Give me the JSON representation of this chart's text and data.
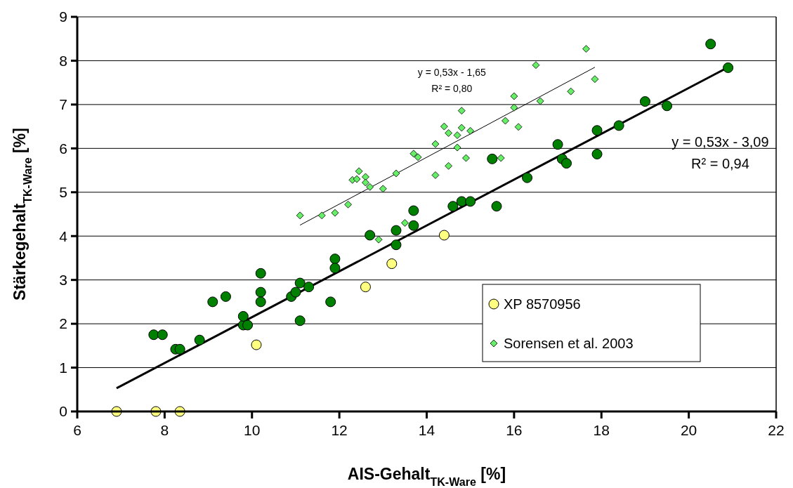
{
  "chart_data": {
    "type": "scatter",
    "xlabel": "AIS-Gehalt$_{TK-Ware}$ [%]",
    "ylabel": "Stärkegehalt$_{TK-Ware}$ [%]",
    "xlim": [
      6,
      22
    ],
    "xticks": [
      6,
      8,
      10,
      12,
      14,
      16,
      18,
      20,
      22
    ],
    "ylim": [
      0,
      9
    ],
    "yticks": [
      0,
      1,
      2,
      3,
      4,
      5,
      6,
      7,
      8,
      9
    ],
    "grid": "y",
    "legend": "bottom right",
    "series": [
      {
        "type": "line",
        "color": "#000000",
        "marker": "none",
        "line_style": "solid",
        "x": [
          6.9,
          20.9
        ],
        "values": [
          0.53,
          7.85
        ]
      },
      {
        "type": "line",
        "color": "#000000",
        "marker": "none",
        "line_style": "solid",
        "x": [
          11.1,
          17.85
        ],
        "values": [
          4.25,
          7.85
        ]
      },
      {
        "color": "#008000",
        "marker": "circle",
        "x": [
          7.75,
          7.95,
          8.25,
          8.35,
          8.8,
          9.1,
          9.4,
          9.8,
          9.8,
          9.9,
          10.2,
          10.2,
          10.2,
          10.9,
          11.0,
          11.1,
          11.1,
          11.3,
          11.8,
          11.9,
          11.9,
          12.7,
          13.3,
          13.3,
          13.7,
          13.7,
          14.6,
          14.8,
          15.0,
          15.6,
          15.5,
          16.3,
          17.0,
          17.1,
          17.2,
          17.9,
          17.9,
          18.4,
          19.0,
          19.5,
          20.5,
          20.9
        ],
        "values": [
          1.75,
          1.75,
          1.42,
          1.42,
          1.63,
          2.5,
          2.62,
          1.97,
          2.17,
          1.97,
          3.15,
          2.72,
          2.5,
          2.62,
          2.72,
          2.93,
          2.07,
          2.84,
          2.5,
          3.48,
          3.27,
          4.02,
          4.13,
          3.8,
          4.58,
          4.24,
          4.68,
          4.79,
          4.79,
          4.68,
          5.76,
          5.33,
          6.09,
          5.76,
          5.66,
          6.41,
          5.87,
          6.52,
          7.07,
          6.97,
          8.38,
          7.84
        ]
      },
      {
        "name": "XP 8570956",
        "color": "#ffff80",
        "marker": "circle",
        "x": [
          6.9,
          7.8,
          8.35,
          10.1,
          12.6,
          13.2,
          14.4
        ],
        "values": [
          0,
          0,
          0,
          1.52,
          2.84,
          3.37,
          4.02
        ]
      },
      {
        "name": "Sorensen et al. 2003",
        "color": "#66ee66",
        "marker": "diamond",
        "x": [
          11.1,
          11.6,
          11.9,
          12.2,
          12.3,
          12.4,
          12.45,
          12.6,
          12.6,
          12.7,
          12.9,
          13.0,
          13.3,
          13.5,
          13.7,
          13.8,
          14.2,
          14.2,
          14.4,
          14.5,
          14.5,
          14.7,
          14.7,
          14.8,
          14.8,
          14.9,
          15.0,
          15.7,
          15.8,
          16.0,
          16.0,
          16.1,
          16.5,
          16.6,
          17.3,
          17.65,
          17.85
        ],
        "values": [
          4.47,
          4.47,
          4.53,
          4.72,
          5.28,
          5.3,
          5.48,
          5.35,
          5.22,
          5.12,
          3.92,
          5.08,
          5.43,
          4.3,
          5.88,
          5.8,
          6.1,
          5.39,
          6.5,
          6.35,
          5.6,
          6.02,
          6.3,
          6.86,
          6.47,
          5.78,
          6.4,
          5.78,
          6.63,
          6.93,
          7.19,
          6.49,
          7.9,
          7.08,
          7.3,
          8.27,
          7.58
        ]
      }
    ],
    "annotations": [
      "y = 0,53x - 1,65",
      "R² = 0,80",
      "y = 0,53x - 3,09",
      "R² = 0,94"
    ]
  }
}
